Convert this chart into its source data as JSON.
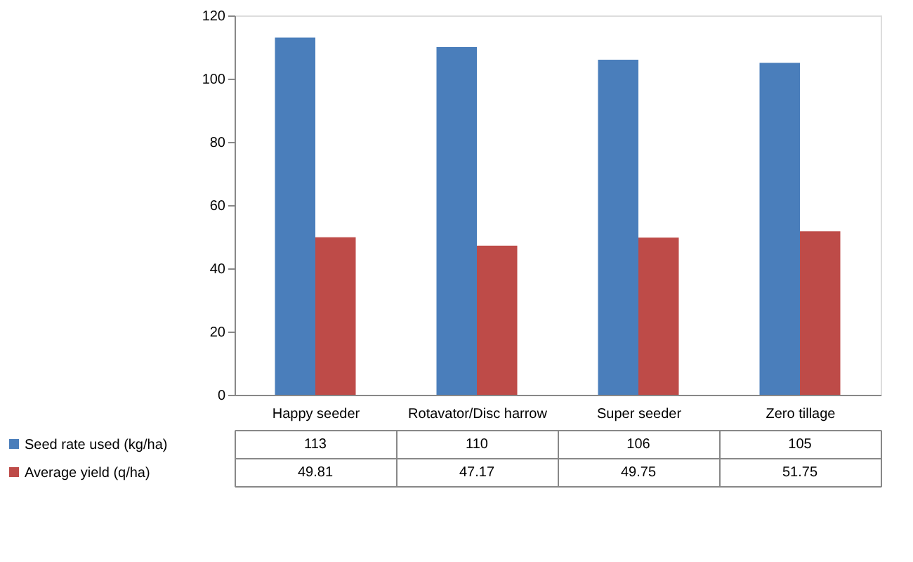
{
  "chart_data": {
    "type": "bar",
    "categories": [
      "Happy seeder",
      "Rotavator/Disc harrow",
      "Super seeder",
      "Zero tillage"
    ],
    "series": [
      {
        "name": "Seed rate used (kg/ha)",
        "color": "#4a7ebb",
        "values": [
          113,
          110,
          106,
          105
        ]
      },
      {
        "name": "Average yield (q/ha)",
        "color": "#be4b48",
        "values": [
          49.81,
          47.17,
          49.75,
          51.75
        ]
      }
    ],
    "ylim": [
      0,
      120
    ],
    "yticks": [
      0,
      20,
      40,
      60,
      80,
      100,
      120
    ],
    "grid": false,
    "legend": "bottom",
    "data_labels": true
  }
}
